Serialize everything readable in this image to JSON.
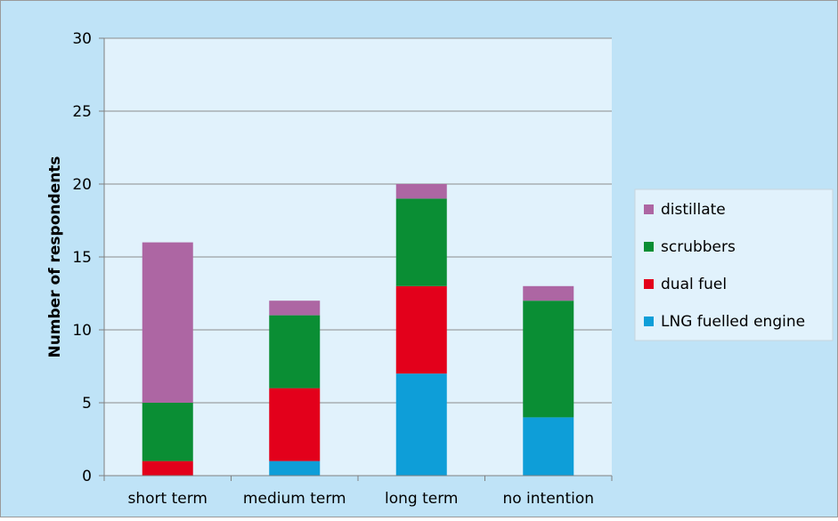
{
  "chart_data": {
    "type": "bar",
    "stacked": true,
    "categories": [
      "short term",
      "medium term",
      "long term",
      "no intention"
    ],
    "series": [
      {
        "name": "LNG fuelled engine",
        "color": "#0e9ed8",
        "values": [
          0,
          1,
          7,
          4
        ]
      },
      {
        "name": "dual fuel",
        "color": "#e3001b",
        "values": [
          1,
          5,
          6,
          0
        ]
      },
      {
        "name": "scrubbers",
        "color": "#0a8e34",
        "values": [
          4,
          5,
          6,
          8
        ]
      },
      {
        "name": "distillate",
        "color": "#ad66a3",
        "values": [
          11,
          1,
          1,
          1
        ]
      }
    ],
    "ylabel": "Number of respondents",
    "ylim": [
      0,
      30
    ],
    "yticks": [
      0,
      5,
      10,
      15,
      20,
      25,
      30
    ],
    "grid": true,
    "legend": "right",
    "legend_order": [
      "distillate",
      "scrubbers",
      "dual fuel",
      "LNG fuelled engine"
    ],
    "plot_background": "#e1f2fc",
    "chart_background": "#bfe3f7"
  }
}
